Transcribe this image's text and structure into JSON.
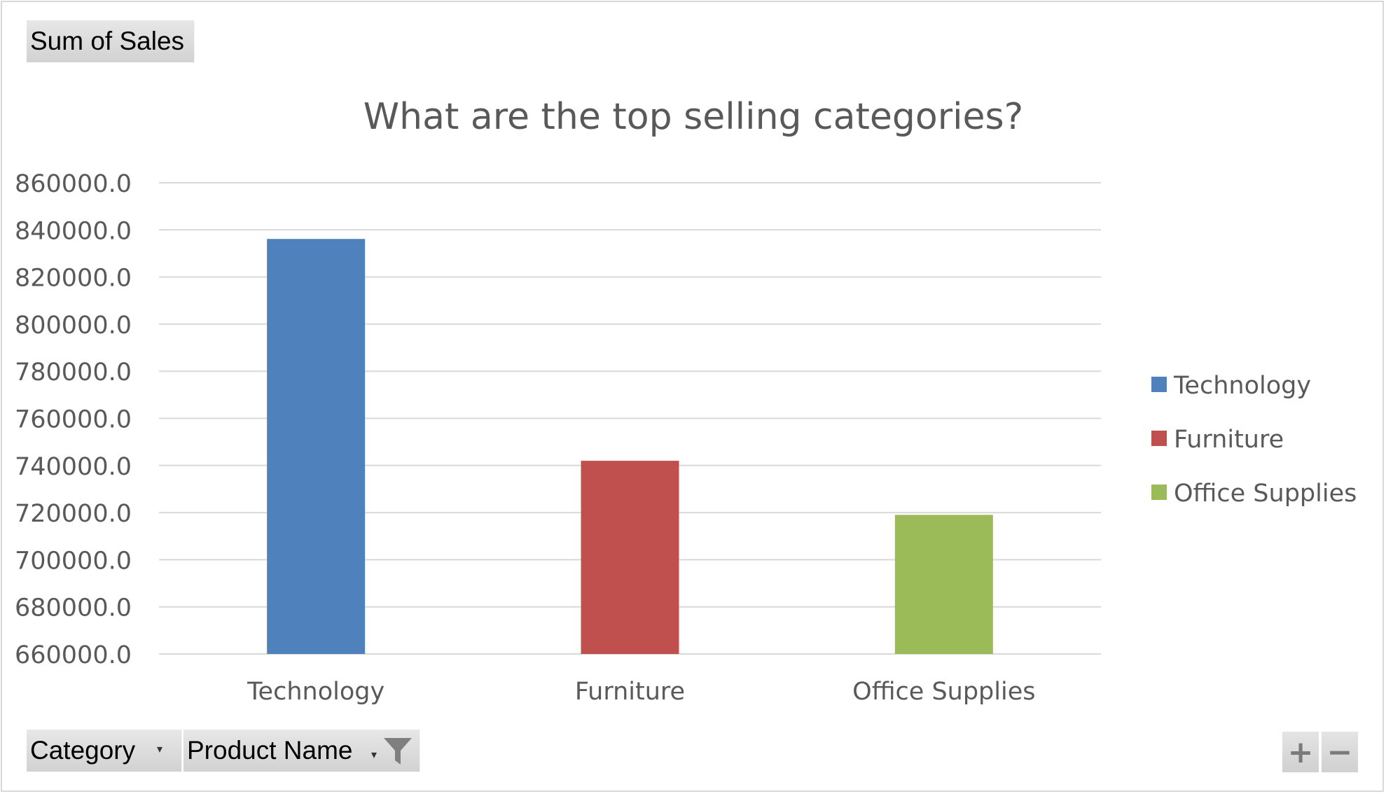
{
  "pivot": {
    "value_field": "Sum of Sales",
    "axis_fields": [
      {
        "label": "Category",
        "icon": "dropdown-arrow-icon"
      },
      {
        "label": "Product Name",
        "icon": "filter-funnel-icon"
      }
    ],
    "zoom_buttons": {
      "expand": "+",
      "collapse": "−"
    }
  },
  "chart_data": {
    "type": "bar",
    "title": "What are the top selling categories?",
    "categories": [
      "Technology",
      "Furniture",
      "Office Supplies"
    ],
    "values": [
      836154,
      741999,
      719047
    ],
    "colors": [
      "#4f81bd",
      "#c0504d",
      "#9bbb59"
    ],
    "ylim": [
      660000,
      860000
    ],
    "yticks": [
      660000,
      680000,
      700000,
      720000,
      740000,
      760000,
      780000,
      800000,
      820000,
      840000,
      860000
    ],
    "ytick_labels": [
      "660000.0",
      "680000.0",
      "700000.0",
      "720000.0",
      "740000.0",
      "760000.0",
      "780000.0",
      "800000.0",
      "820000.0",
      "840000.0",
      "860000.0"
    ],
    "grid": true,
    "legend": {
      "placement": "right",
      "entries": [
        "Technology",
        "Furniture",
        "Office Supplies"
      ]
    }
  }
}
